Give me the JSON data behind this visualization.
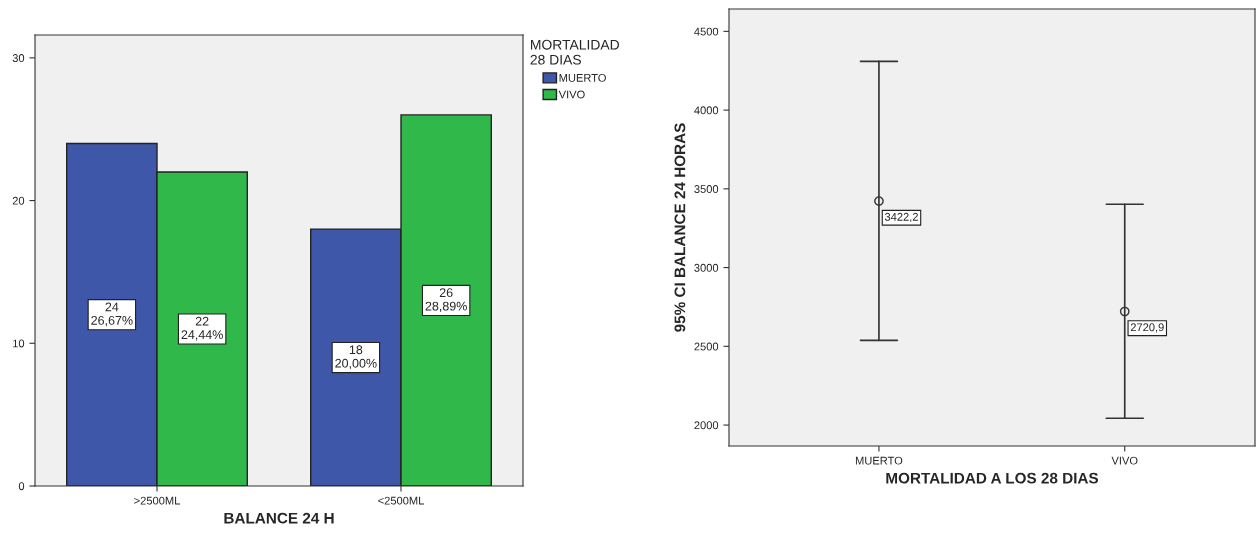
{
  "chart_data": [
    {
      "type": "bar",
      "xlabel": "BALANCE 24 H",
      "legend_title": "MORTALIDAD\n28 DIAS",
      "categories": [
        ">2500ML",
        "<2500ML"
      ],
      "series": [
        {
          "name": "MUERTO",
          "color": "#3f57a8",
          "values": [
            24,
            18
          ],
          "value_labels": [
            "24\n26,67%",
            "18\n20,00%"
          ]
        },
        {
          "name": "VIVO",
          "color": "#31b84a",
          "values": [
            22,
            26
          ],
          "value_labels": [
            "22\n24,44%",
            "26\n28,89%"
          ]
        }
      ],
      "ylim": [
        0,
        31.6
      ],
      "yticks": [
        0,
        10,
        20,
        30
      ],
      "grid": false,
      "legend": "top right"
    },
    {
      "type": "scatter",
      "xlabel": "MORTALIDAD A LOS 28 DIAS",
      "ylabel": "95% CI BALANCE 24 HORAS",
      "categories": [
        "MUERTO",
        "VIVO"
      ],
      "values": [
        3422.2,
        2720.9
      ],
      "errors": [
        [
          2538,
          4309
        ],
        [
          2043,
          3402
        ]
      ],
      "value_labels": [
        "3422,2",
        "2720,9"
      ],
      "color": "#333333",
      "marker": "circle",
      "ylim": [
        1867,
        4642
      ],
      "yticks": [
        2000,
        2500,
        3000,
        3500,
        4000,
        4500
      ],
      "grid": false
    }
  ]
}
